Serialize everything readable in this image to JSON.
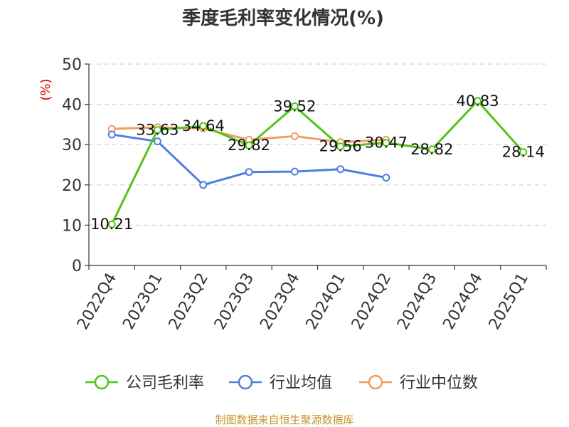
{
  "chart_data": {
    "type": "line",
    "title": "季度毛利率变化情况(%)",
    "ylabel": "(%)",
    "xlabel": "",
    "ylim": [
      0,
      50
    ],
    "yticks": [
      0,
      10,
      20,
      30,
      40,
      50
    ],
    "grid": true,
    "legend_position": "bottom",
    "categories": [
      "2022Q4",
      "2023Q1",
      "2023Q2",
      "2023Q3",
      "2023Q4",
      "2024Q1",
      "2024Q2",
      "2024Q3",
      "2024Q4",
      "2025Q1"
    ],
    "series": [
      {
        "name": "公司毛利率",
        "color": "#52c41a",
        "values": [
          10.21,
          33.63,
          34.64,
          29.82,
          39.52,
          29.56,
          30.47,
          28.82,
          40.83,
          28.14
        ],
        "labels": [
          "10.21",
          "33.63",
          "34.64",
          "29.82",
          "39.52",
          "29.56",
          "30.47",
          "28.82",
          "40.83",
          "28.14"
        ]
      },
      {
        "name": "行业均值",
        "color": "#4f7fdc",
        "values": [
          32.5,
          30.8,
          20.0,
          23.2,
          23.3,
          23.9,
          21.8,
          null,
          null,
          null
        ]
      },
      {
        "name": "行业中位数",
        "color": "#f59a63",
        "values": [
          33.9,
          34.3,
          34.0,
          31.2,
          32.1,
          30.6,
          31.2,
          null,
          null,
          null
        ]
      }
    ],
    "source": "制图数据来自恒生聚源数据库"
  }
}
